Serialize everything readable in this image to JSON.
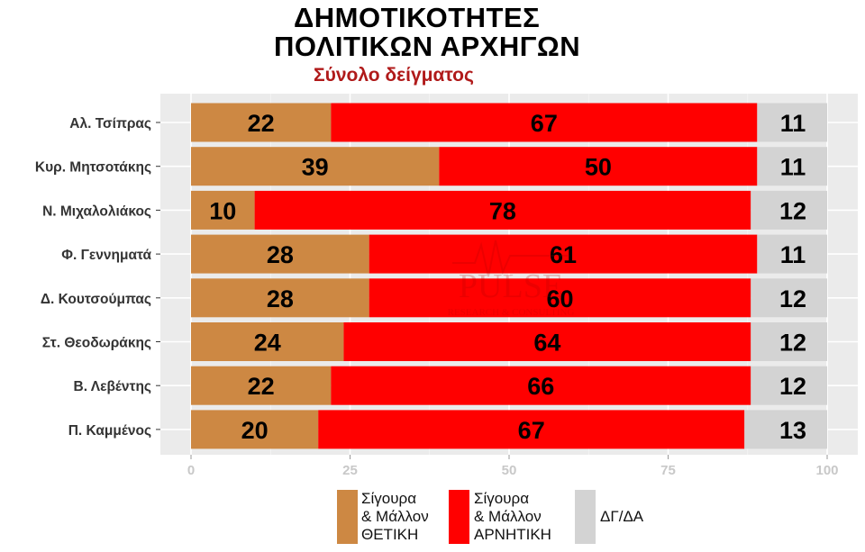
{
  "title_lines": [
    "ΔΗΜΟΤΙΚΟΤΗΤΕΣ",
    "ΠΟΛΙΤΙΚΩΝ ΑΡΧΗΓΩΝ"
  ],
  "subtitle": "Σύνολο δείγματος",
  "watermark": {
    "brand": "PULSE",
    "tagline": "RESEARCH & CONSULTING"
  },
  "chart_data": {
    "type": "bar",
    "orientation": "horizontal",
    "stacked": true,
    "title": "ΔΗΜΟΤΙΚΟΤΗΤΕΣ ΠΟΛΙΤΙΚΩΝ ΑΡΧΗΓΩΝ",
    "subtitle": "Σύνολο δείγματος",
    "categories": [
      "Αλ. Τσίπρας",
      "Κυρ. Μητσοτάκης",
      "Ν. Μιχαλολιάκος",
      "Φ. Γεννηματά",
      "Δ. Κουτσούμπας",
      "Στ. Θεοδωράκης",
      "Β. Λεβέντης",
      "Π. Καμμένος"
    ],
    "series": [
      {
        "name": "Σίγουρα & Μάλλον ΘΕΤΙΚΗ",
        "legend_lines": [
          "Σίγουρα",
          "& Μάλλον",
          "ΘΕΤΙΚΗ"
        ],
        "color": "#cd8843",
        "values": [
          22,
          39,
          10,
          28,
          28,
          24,
          22,
          20
        ]
      },
      {
        "name": "Σίγουρα & Μάλλον ΑΡΝΗΤΙΚΗ",
        "legend_lines": [
          "Σίγουρα",
          "& Μάλλον",
          "ΑΡΝΗΤΙΚΗ"
        ],
        "color": "#ff0000",
        "values": [
          67,
          50,
          78,
          61,
          60,
          64,
          66,
          67
        ]
      },
      {
        "name": "ΔΓ/ΔΑ",
        "legend_lines": [
          "ΔΓ/ΔΑ"
        ],
        "color": "#d3d3d3",
        "values": [
          11,
          11,
          12,
          11,
          12,
          12,
          12,
          13
        ]
      }
    ],
    "xlim": [
      0,
      100
    ],
    "xticks": [
      0,
      25,
      50,
      75,
      100
    ],
    "grid": true,
    "legend_position": "bottom",
    "panel_background": "#ebebeb"
  }
}
